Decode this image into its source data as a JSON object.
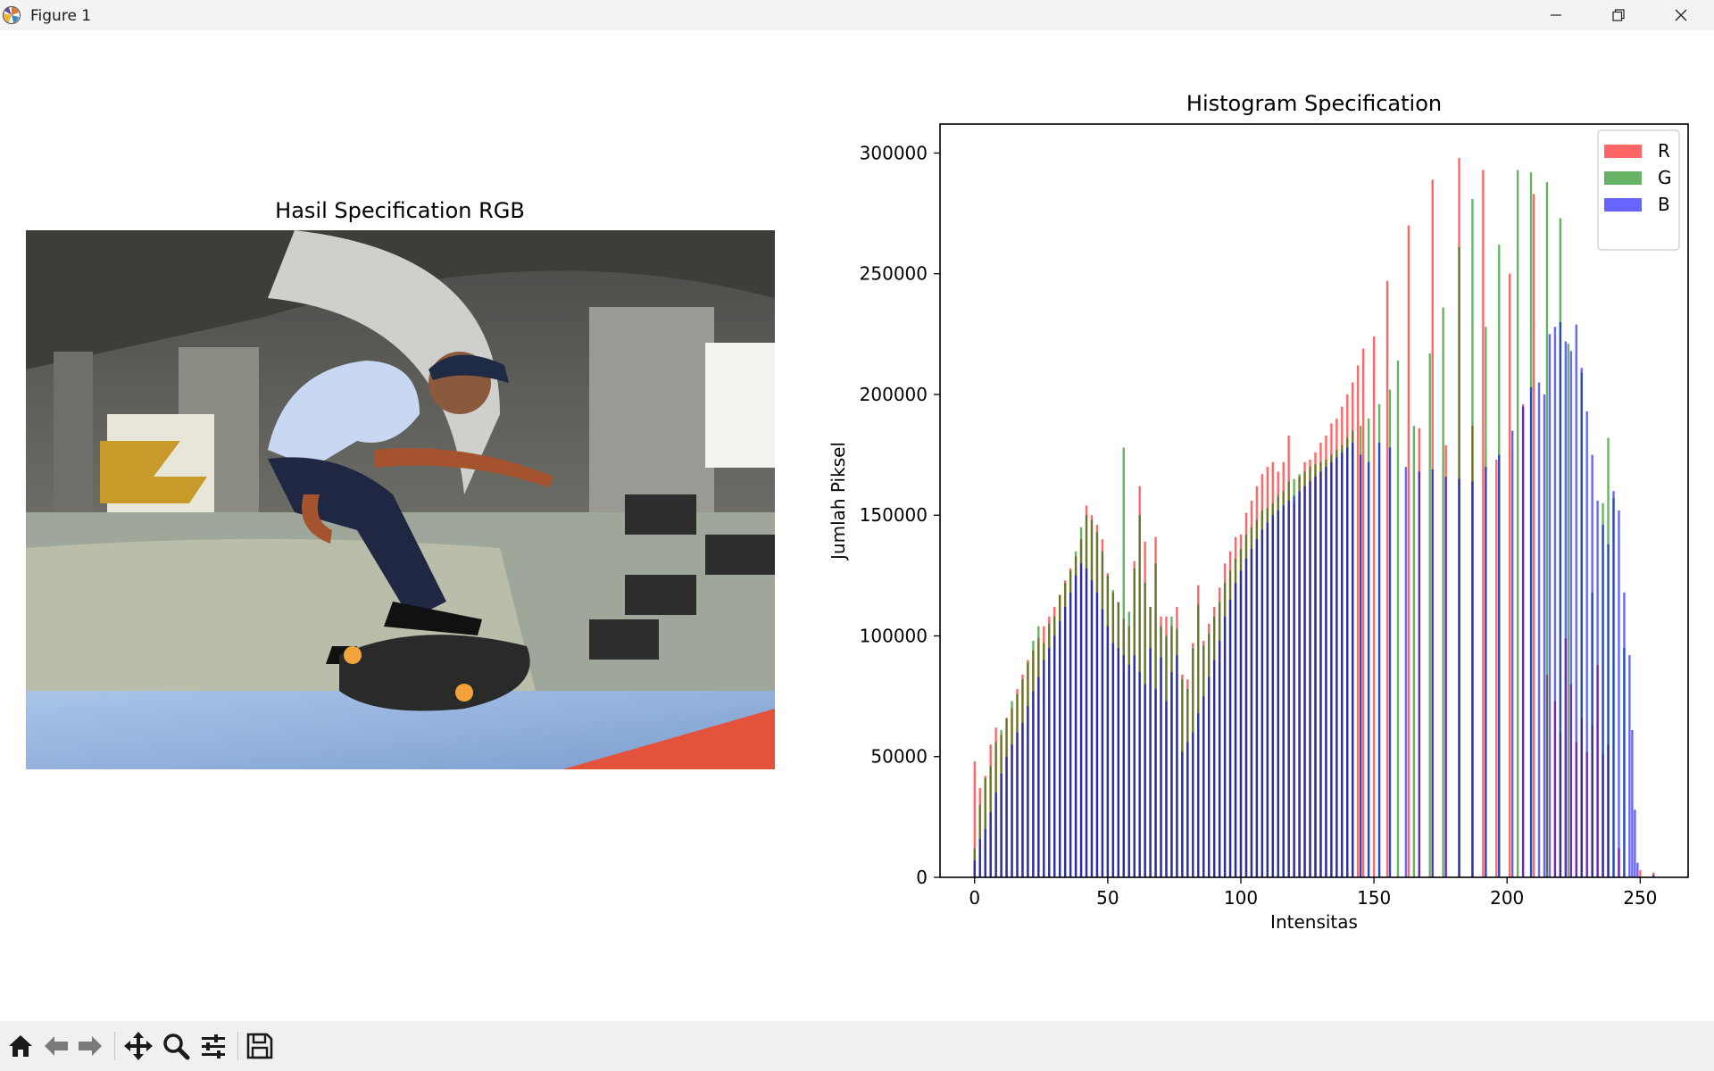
{
  "window": {
    "title": "Figure 1"
  },
  "toolbar": {
    "icons": [
      "home-icon",
      "back-arrow-icon",
      "forward-arrow-icon",
      "pan-icon",
      "zoom-icon",
      "configure-subplots-icon",
      "save-icon"
    ]
  },
  "image_panel": {
    "title": "Hasil Specification RGB"
  },
  "chart_data": {
    "type": "bar",
    "title": "Histogram Specification",
    "xlabel": "Intensitas",
    "ylabel": "Jumlah Piksel",
    "xlim": [
      -13,
      268
    ],
    "ylim": [
      0,
      312000
    ],
    "xticks": [
      0,
      50,
      100,
      150,
      200,
      250
    ],
    "yticks": [
      0,
      50000,
      100000,
      150000,
      200000,
      250000,
      300000
    ],
    "legend_position": "top-right",
    "series": [
      {
        "name": "R",
        "color": "#ff0000",
        "opacity": 0.6,
        "values": [
          [
            0,
            48000
          ],
          [
            2,
            37000
          ],
          [
            4,
            42000
          ],
          [
            6,
            55000
          ],
          [
            8,
            62000
          ],
          [
            10,
            59000
          ],
          [
            12,
            66000
          ],
          [
            14,
            70000
          ],
          [
            16,
            78000
          ],
          [
            18,
            84000
          ],
          [
            20,
            90000
          ],
          [
            22,
            94000
          ],
          [
            24,
            99000
          ],
          [
            26,
            104000
          ],
          [
            28,
            108000
          ],
          [
            30,
            112000
          ],
          [
            32,
            117000
          ],
          [
            34,
            123000
          ],
          [
            36,
            128000
          ],
          [
            38,
            133000
          ],
          [
            40,
            140000
          ],
          [
            42,
            154000
          ],
          [
            44,
            150000
          ],
          [
            46,
            146000
          ],
          [
            48,
            140000
          ],
          [
            50,
            126000
          ],
          [
            52,
            118000
          ],
          [
            54,
            114000
          ],
          [
            56,
            107000
          ],
          [
            58,
            104000
          ],
          [
            60,
            131000
          ],
          [
            62,
            162000
          ],
          [
            64,
            139000
          ],
          [
            66,
            112000
          ],
          [
            68,
            141000
          ],
          [
            70,
            108000
          ],
          [
            72,
            108000
          ],
          [
            74,
            104000
          ],
          [
            76,
            112000
          ],
          [
            78,
            84000
          ],
          [
            80,
            82000
          ],
          [
            82,
            97000
          ],
          [
            84,
            121000
          ],
          [
            86,
            98000
          ],
          [
            88,
            105000
          ],
          [
            90,
            112000
          ],
          [
            92,
            120000
          ],
          [
            94,
            130000
          ],
          [
            96,
            135000
          ],
          [
            98,
            141000
          ],
          [
            100,
            142000
          ],
          [
            102,
            151000
          ],
          [
            104,
            156000
          ],
          [
            106,
            162000
          ],
          [
            108,
            167000
          ],
          [
            110,
            170000
          ],
          [
            112,
            172000
          ],
          [
            114,
            168000
          ],
          [
            116,
            172000
          ],
          [
            118,
            183000
          ],
          [
            120,
            155000
          ],
          [
            122,
            166000
          ],
          [
            124,
            172000
          ],
          [
            126,
            173000
          ],
          [
            128,
            176000
          ],
          [
            130,
            180000
          ],
          [
            132,
            183000
          ],
          [
            134,
            188000
          ],
          [
            136,
            190000
          ],
          [
            138,
            195000
          ],
          [
            140,
            200000
          ],
          [
            142,
            205000
          ],
          [
            144,
            212000
          ],
          [
            146,
            219000
          ],
          [
            150,
            224000
          ],
          [
            155,
            247000
          ],
          [
            163,
            270000
          ],
          [
            167,
            186000
          ],
          [
            172,
            289000
          ],
          [
            177,
            179000
          ],
          [
            182,
            298000
          ],
          [
            187,
            187000
          ],
          [
            191,
            293000
          ],
          [
            196,
            173000
          ],
          [
            201,
            250000
          ],
          [
            206,
            196000
          ],
          [
            210,
            283000
          ],
          [
            215,
            84000
          ],
          [
            218,
            73000
          ],
          [
            220,
            60000
          ],
          [
            222,
            99000
          ],
          [
            224,
            80000
          ],
          [
            226,
            56000
          ],
          [
            228,
            66000
          ],
          [
            230,
            52000
          ],
          [
            232,
            63000
          ],
          [
            234,
            88000
          ],
          [
            236,
            51000
          ],
          [
            238,
            55000
          ],
          [
            242,
            12000
          ],
          [
            250,
            3000
          ],
          [
            255,
            2000
          ]
        ]
      },
      {
        "name": "G",
        "color": "#008000",
        "opacity": 0.6,
        "values": [
          [
            0,
            12000
          ],
          [
            2,
            30000
          ],
          [
            4,
            41000
          ],
          [
            6,
            46000
          ],
          [
            8,
            56000
          ],
          [
            10,
            61000
          ],
          [
            12,
            66000
          ],
          [
            14,
            73000
          ],
          [
            16,
            76000
          ],
          [
            18,
            82000
          ],
          [
            20,
            89000
          ],
          [
            22,
            98000
          ],
          [
            24,
            104000
          ],
          [
            26,
            97000
          ],
          [
            28,
            105000
          ],
          [
            30,
            108000
          ],
          [
            32,
            117000
          ],
          [
            34,
            122000
          ],
          [
            36,
            127000
          ],
          [
            38,
            135000
          ],
          [
            40,
            145000
          ],
          [
            42,
            150000
          ],
          [
            44,
            148000
          ],
          [
            46,
            143000
          ],
          [
            48,
            135000
          ],
          [
            50,
            125000
          ],
          [
            52,
            119000
          ],
          [
            54,
            114000
          ],
          [
            56,
            178000
          ],
          [
            58,
            110000
          ],
          [
            60,
            128000
          ],
          [
            62,
            150000
          ],
          [
            64,
            122000
          ],
          [
            66,
            112000
          ],
          [
            68,
            130000
          ],
          [
            70,
            104000
          ],
          [
            72,
            100000
          ],
          [
            74,
            108000
          ],
          [
            76,
            103000
          ],
          [
            78,
            82000
          ],
          [
            80,
            78000
          ],
          [
            82,
            95000
          ],
          [
            84,
            113000
          ],
          [
            86,
            96000
          ],
          [
            88,
            101000
          ],
          [
            90,
            108000
          ],
          [
            92,
            114000
          ],
          [
            94,
            122000
          ],
          [
            96,
            127000
          ],
          [
            98,
            132000
          ],
          [
            100,
            136000
          ],
          [
            102,
            142000
          ],
          [
            104,
            145000
          ],
          [
            106,
            148000
          ],
          [
            108,
            152000
          ],
          [
            110,
            153000
          ],
          [
            112,
            155000
          ],
          [
            114,
            158000
          ],
          [
            116,
            160000
          ],
          [
            118,
            164000
          ],
          [
            120,
            165000
          ],
          [
            122,
            167000
          ],
          [
            124,
            168000
          ],
          [
            126,
            170000
          ],
          [
            128,
            171000
          ],
          [
            130,
            172000
          ],
          [
            132,
            173000
          ],
          [
            134,
            175000
          ],
          [
            136,
            177000
          ],
          [
            138,
            179000
          ],
          [
            140,
            182000
          ],
          [
            142,
            185000
          ],
          [
            145,
            187000
          ],
          [
            148,
            190000
          ],
          [
            152,
            196000
          ],
          [
            156,
            202000
          ],
          [
            159,
            214000
          ],
          [
            165,
            187000
          ],
          [
            171,
            217000
          ],
          [
            176,
            236000
          ],
          [
            182,
            261000
          ],
          [
            187,
            281000
          ],
          [
            192,
            228000
          ],
          [
            197,
            262000
          ],
          [
            204,
            293000
          ],
          [
            209,
            292000
          ],
          [
            215,
            288000
          ],
          [
            220,
            273000
          ],
          [
            223,
            221000
          ],
          [
            228,
            209000
          ],
          [
            232,
            118000
          ],
          [
            236,
            155000
          ],
          [
            238,
            182000
          ],
          [
            240,
            157000
          ],
          [
            244,
            95000
          ]
        ]
      },
      {
        "name": "B",
        "color": "#0000ff",
        "opacity": 0.6,
        "values": [
          [
            0,
            7000
          ],
          [
            2,
            16000
          ],
          [
            4,
            20000
          ],
          [
            6,
            27000
          ],
          [
            8,
            35000
          ],
          [
            10,
            43000
          ],
          [
            12,
            50000
          ],
          [
            14,
            55000
          ],
          [
            16,
            60000
          ],
          [
            18,
            64000
          ],
          [
            20,
            71000
          ],
          [
            22,
            77000
          ],
          [
            24,
            83000
          ],
          [
            26,
            90000
          ],
          [
            28,
            95000
          ],
          [
            30,
            100000
          ],
          [
            32,
            106000
          ],
          [
            34,
            112000
          ],
          [
            36,
            118000
          ],
          [
            38,
            125000
          ],
          [
            40,
            130000
          ],
          [
            42,
            128000
          ],
          [
            44,
            123000
          ],
          [
            46,
            118000
          ],
          [
            48,
            111000
          ],
          [
            50,
            104000
          ],
          [
            52,
            97000
          ],
          [
            54,
            95000
          ],
          [
            56,
            92000
          ],
          [
            58,
            88000
          ],
          [
            60,
            92000
          ],
          [
            62,
            85000
          ],
          [
            64,
            80000
          ],
          [
            66,
            95000
          ],
          [
            68,
            78000
          ],
          [
            70,
            91000
          ],
          [
            72,
            73000
          ],
          [
            74,
            85000
          ],
          [
            76,
            92000
          ],
          [
            78,
            52000
          ],
          [
            80,
            56000
          ],
          [
            82,
            60000
          ],
          [
            84,
            68000
          ],
          [
            86,
            75000
          ],
          [
            88,
            83000
          ],
          [
            90,
            90000
          ],
          [
            92,
            98000
          ],
          [
            94,
            108000
          ],
          [
            96,
            115000
          ],
          [
            98,
            122000
          ],
          [
            100,
            127000
          ],
          [
            102,
            132000
          ],
          [
            104,
            136000
          ],
          [
            106,
            140000
          ],
          [
            108,
            144000
          ],
          [
            110,
            147000
          ],
          [
            112,
            150000
          ],
          [
            114,
            152000
          ],
          [
            116,
            154000
          ],
          [
            118,
            156000
          ],
          [
            120,
            158000
          ],
          [
            122,
            160000
          ],
          [
            124,
            162000
          ],
          [
            126,
            164000
          ],
          [
            128,
            166000
          ],
          [
            130,
            168000
          ],
          [
            132,
            170000
          ],
          [
            134,
            172000
          ],
          [
            136,
            174000
          ],
          [
            138,
            176000
          ],
          [
            140,
            178000
          ],
          [
            142,
            180000
          ],
          [
            145,
            175000
          ],
          [
            148,
            172000
          ],
          [
            152,
            180000
          ],
          [
            156,
            178000
          ],
          [
            162,
            170000
          ],
          [
            167,
            168000
          ],
          [
            172,
            169000
          ],
          [
            177,
            166000
          ],
          [
            182,
            165000
          ],
          [
            187,
            164000
          ],
          [
            192,
            170000
          ],
          [
            197,
            175000
          ],
          [
            202,
            185000
          ],
          [
            206,
            195000
          ],
          [
            209,
            203000
          ],
          [
            212,
            205000
          ],
          [
            214,
            200000
          ],
          [
            216,
            225000
          ],
          [
            218,
            228000
          ],
          [
            220,
            230000
          ],
          [
            222,
            222000
          ],
          [
            224,
            218000
          ],
          [
            226,
            229000
          ],
          [
            228,
            211000
          ],
          [
            230,
            193000
          ],
          [
            232,
            175000
          ],
          [
            234,
            156000
          ],
          [
            236,
            146000
          ],
          [
            238,
            138000
          ],
          [
            240,
            160000
          ],
          [
            242,
            152000
          ],
          [
            244,
            118000
          ],
          [
            246,
            92000
          ],
          [
            247,
            61000
          ],
          [
            248,
            28000
          ],
          [
            249,
            6000
          ],
          [
            255,
            1000
          ]
        ]
      }
    ]
  }
}
